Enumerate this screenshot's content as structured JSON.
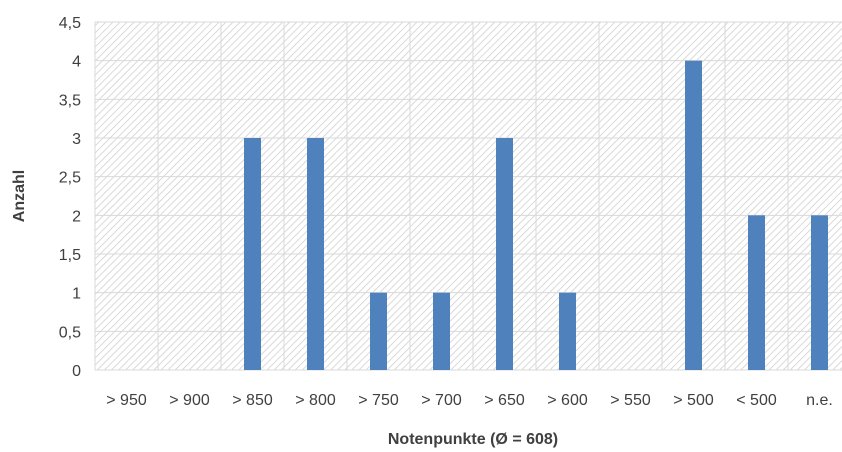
{
  "chart_data": {
    "type": "bar",
    "categories": [
      "> 950",
      "> 900",
      "> 850",
      "> 800",
      "> 750",
      "> 700",
      "> 650",
      "> 600",
      "> 550",
      "> 500",
      "< 500",
      "n.e."
    ],
    "values": [
      0,
      0,
      3,
      3,
      1,
      1,
      3,
      1,
      0,
      4,
      2,
      2
    ],
    "title": "",
    "xlabel": "Notenpunkte (Ø = 608)",
    "ylabel": "Anzahl",
    "ylim": [
      0,
      4.5
    ],
    "yticks": [
      "0",
      "0,5",
      "1",
      "1,5",
      "2",
      "2,5",
      "3",
      "3,5",
      "4",
      "4,5"
    ],
    "grid": true,
    "legend": "none",
    "colors": {
      "bar": "#4f81bd",
      "grid": "#d9d9d9",
      "hatch": "#d0d0d0",
      "text": "#404040"
    }
  }
}
